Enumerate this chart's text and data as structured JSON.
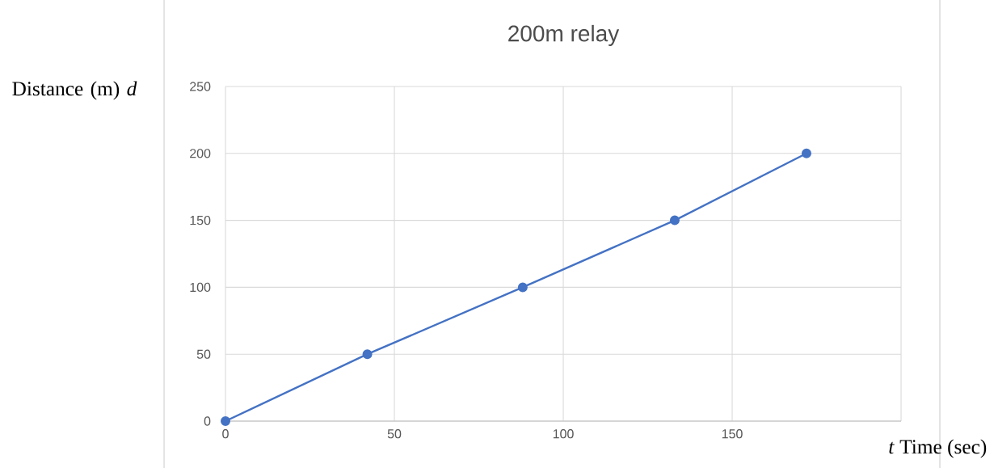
{
  "chart_data": {
    "type": "line",
    "title": "200m relay",
    "xlabel": "*t* Time (sec)",
    "ylabel": "Distance (m) *d*",
    "x": [
      0,
      42,
      88,
      133,
      172
    ],
    "series": [
      {
        "color": "#4472c4",
        "values": [
          0,
          50,
          100,
          150,
          200
        ]
      }
    ],
    "xlim": [
      0,
      200
    ],
    "xticks": [
      0,
      50,
      100,
      150,
      {
        "value": 200,
        "label": null
      }
    ],
    "ylim": [
      0,
      250
    ],
    "yticks": [
      0,
      50,
      100,
      150,
      200,
      250
    ],
    "grid": true,
    "marker": "circle",
    "line_style": "solid"
  }
}
